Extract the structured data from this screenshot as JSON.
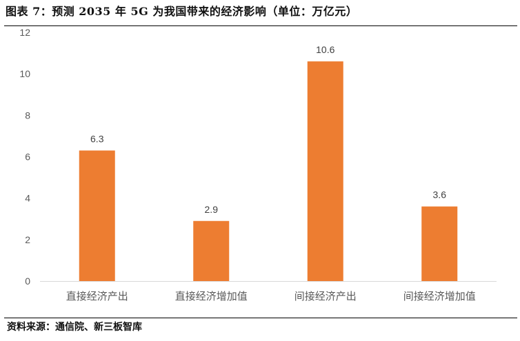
{
  "title": "图表 7：预测 2035 年 5G 为我国带来的经济影响（单位：万亿元）",
  "source": "资料来源：通信院、新三板智库",
  "chart_data": {
    "type": "bar",
    "categories": [
      "直接经济产出",
      "直接经济增加值",
      "间接经济产出",
      "间接经济增加值"
    ],
    "values": [
      6.3,
      2.9,
      10.6,
      3.6
    ],
    "data_labels": [
      "6.3",
      "2.9",
      "10.6",
      "3.6"
    ],
    "ylim": [
      0,
      12
    ],
    "yticks": [
      0,
      2,
      4,
      6,
      8,
      10,
      12
    ],
    "grid": false,
    "bar_color": "#ED7D31",
    "xlabel": "",
    "ylabel": ""
  }
}
